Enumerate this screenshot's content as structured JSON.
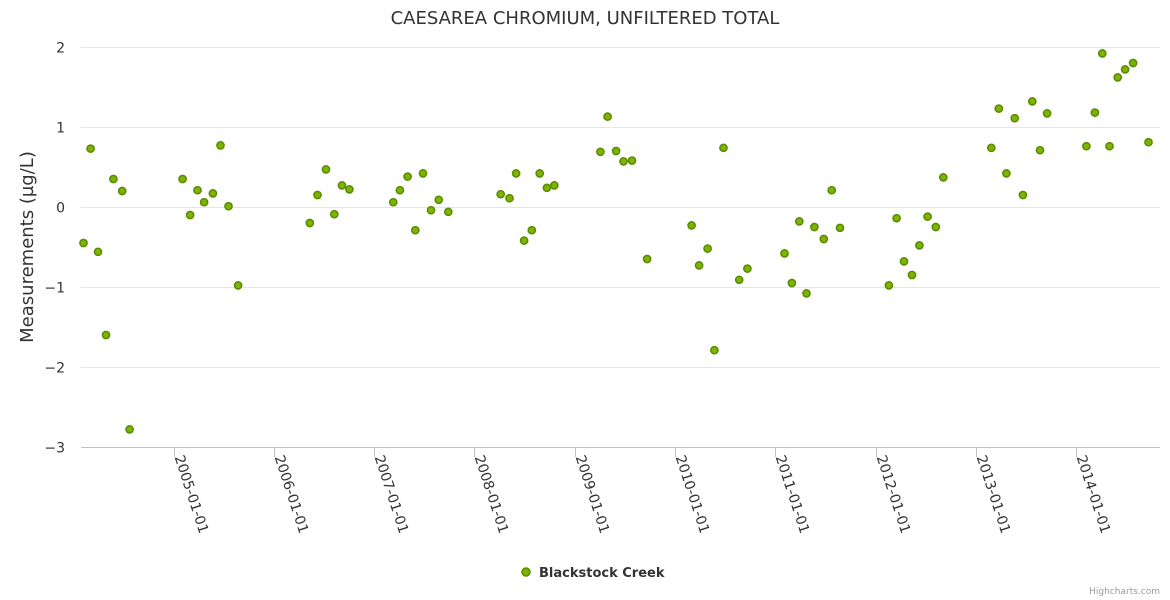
{
  "chart_data": {
    "type": "scatter",
    "title": "CAESAREA CHROMIUM, UNFILTERED TOTAL",
    "xlabel": "",
    "ylabel": "Measurements (µg/L)",
    "ylim": [
      -3,
      2
    ],
    "xlim": [
      "2004-01-30",
      "2014-11-01"
    ],
    "y_ticks": [
      {
        "value": 2,
        "label": "2"
      },
      {
        "value": 1,
        "label": "1"
      },
      {
        "value": 0,
        "label": "0"
      },
      {
        "value": -1,
        "label": "−1"
      },
      {
        "value": -2,
        "label": "−2"
      },
      {
        "value": -3,
        "label": "−3"
      }
    ],
    "x_ticks": [
      "2005-01-01",
      "2006-01-01",
      "2007-01-01",
      "2008-01-01",
      "2009-01-01",
      "2010-01-01",
      "2011-01-01",
      "2012-01-01",
      "2013-01-01",
      "2014-01-01"
    ],
    "grid": true,
    "legend": "bottom-center",
    "colors": {
      "point_fill": "#7cb400",
      "point_stroke": "#5a8a00"
    },
    "series": [
      {
        "name": "Blackstock Creek",
        "points": [
          {
            "x": "2004-02-08",
            "y": -0.45
          },
          {
            "x": "2004-03-05",
            "y": 0.73
          },
          {
            "x": "2004-04-01",
            "y": -0.56
          },
          {
            "x": "2004-04-30",
            "y": -1.6
          },
          {
            "x": "2004-05-27",
            "y": 0.35
          },
          {
            "x": "2004-06-28",
            "y": 0.2
          },
          {
            "x": "2004-07-25",
            "y": -2.78
          },
          {
            "x": "2005-02-03",
            "y": 0.35
          },
          {
            "x": "2005-03-02",
            "y": -0.1
          },
          {
            "x": "2005-03-29",
            "y": 0.21
          },
          {
            "x": "2005-04-22",
            "y": 0.06
          },
          {
            "x": "2005-05-24",
            "y": 0.17
          },
          {
            "x": "2005-06-21",
            "y": 0.77
          },
          {
            "x": "2005-07-20",
            "y": 0.01
          },
          {
            "x": "2005-08-24",
            "y": -0.98
          },
          {
            "x": "2006-05-12",
            "y": -0.2
          },
          {
            "x": "2006-06-09",
            "y": 0.15
          },
          {
            "x": "2006-07-10",
            "y": 0.47
          },
          {
            "x": "2006-08-09",
            "y": -0.09
          },
          {
            "x": "2006-09-06",
            "y": 0.27
          },
          {
            "x": "2006-10-03",
            "y": 0.22
          },
          {
            "x": "2007-03-12",
            "y": 0.06
          },
          {
            "x": "2007-04-05",
            "y": 0.21
          },
          {
            "x": "2007-05-03",
            "y": 0.38
          },
          {
            "x": "2007-05-31",
            "y": -0.29
          },
          {
            "x": "2007-06-28",
            "y": 0.42
          },
          {
            "x": "2007-07-27",
            "y": -0.04
          },
          {
            "x": "2007-08-24",
            "y": 0.09
          },
          {
            "x": "2007-09-28",
            "y": -0.06
          },
          {
            "x": "2008-04-06",
            "y": 0.16
          },
          {
            "x": "2008-05-08",
            "y": 0.11
          },
          {
            "x": "2008-06-01",
            "y": 0.42
          },
          {
            "x": "2008-06-30",
            "y": -0.42
          },
          {
            "x": "2008-07-28",
            "y": -0.29
          },
          {
            "x": "2008-08-26",
            "y": 0.42
          },
          {
            "x": "2008-09-21",
            "y": 0.24
          },
          {
            "x": "2008-10-18",
            "y": 0.27
          },
          {
            "x": "2009-04-04",
            "y": 0.69
          },
          {
            "x": "2009-04-30",
            "y": 1.13
          },
          {
            "x": "2009-05-31",
            "y": 0.7
          },
          {
            "x": "2009-06-27",
            "y": 0.57
          },
          {
            "x": "2009-07-28",
            "y": 0.58
          },
          {
            "x": "2009-09-21",
            "y": -0.65
          },
          {
            "x": "2010-03-02",
            "y": -0.23
          },
          {
            "x": "2010-03-29",
            "y": -0.73
          },
          {
            "x": "2010-04-29",
            "y": -0.52
          },
          {
            "x": "2010-05-24",
            "y": -1.79
          },
          {
            "x": "2010-06-26",
            "y": 0.74
          },
          {
            "x": "2010-08-22",
            "y": -0.91
          },
          {
            "x": "2010-09-21",
            "y": -0.77
          },
          {
            "x": "2011-02-03",
            "y": -0.58
          },
          {
            "x": "2011-03-02",
            "y": -0.95
          },
          {
            "x": "2011-03-29",
            "y": -0.18
          },
          {
            "x": "2011-04-24",
            "y": -1.08
          },
          {
            "x": "2011-05-23",
            "y": -0.25
          },
          {
            "x": "2011-06-26",
            "y": -0.4
          },
          {
            "x": "2011-07-25",
            "y": 0.21
          },
          {
            "x": "2011-08-24",
            "y": -0.26
          },
          {
            "x": "2012-02-18",
            "y": -0.98
          },
          {
            "x": "2012-03-17",
            "y": -0.14
          },
          {
            "x": "2012-04-13",
            "y": -0.68
          },
          {
            "x": "2012-05-12",
            "y": -0.85
          },
          {
            "x": "2012-06-08",
            "y": -0.48
          },
          {
            "x": "2012-07-08",
            "y": -0.12
          },
          {
            "x": "2012-08-07",
            "y": -0.25
          },
          {
            "x": "2012-09-03",
            "y": 0.37
          },
          {
            "x": "2013-02-25",
            "y": 0.74
          },
          {
            "x": "2013-03-24",
            "y": 1.23
          },
          {
            "x": "2013-04-21",
            "y": 0.42
          },
          {
            "x": "2013-05-21",
            "y": 1.11
          },
          {
            "x": "2013-06-20",
            "y": 0.15
          },
          {
            "x": "2013-07-24",
            "y": 1.32
          },
          {
            "x": "2013-08-21",
            "y": 0.71
          },
          {
            "x": "2013-09-16",
            "y": 1.17
          },
          {
            "x": "2014-02-06",
            "y": 0.76
          },
          {
            "x": "2014-03-09",
            "y": 1.18
          },
          {
            "x": "2014-04-05",
            "y": 1.92
          },
          {
            "x": "2014-05-01",
            "y": 0.76
          },
          {
            "x": "2014-05-31",
            "y": 1.62
          },
          {
            "x": "2014-06-27",
            "y": 1.72
          },
          {
            "x": "2014-07-26",
            "y": 1.8
          },
          {
            "x": "2014-09-20",
            "y": 0.81
          }
        ]
      }
    ]
  },
  "credits": "Highcharts.com"
}
